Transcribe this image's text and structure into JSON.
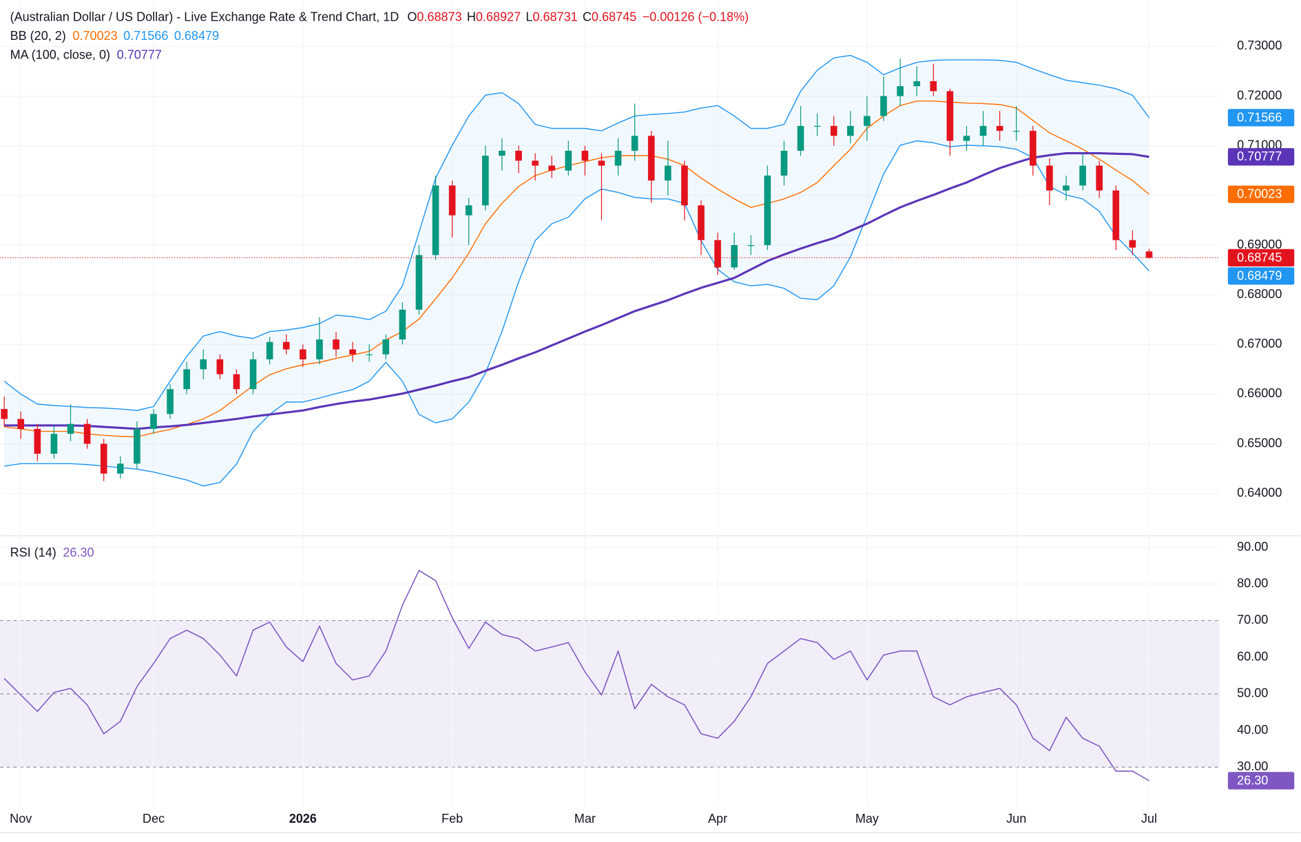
{
  "chart_data": {
    "type": "candlestick",
    "title": "(Australian Dollar / US Dollar) - Live Exchange Rate & Trend Chart, 1D",
    "quote": {
      "o_label": "O",
      "o": "0.68873",
      "h_label": "H",
      "h": "0.68927",
      "l_label": "L",
      "l": "0.68731",
      "c_label": "C",
      "c": "0.68745",
      "change": "−0.00126 (−0.18%)"
    },
    "up_color": "#089981",
    "down_color": "#e3131e",
    "categories": [
      null,
      "Nov",
      null,
      null,
      null,
      null,
      null,
      null,
      null,
      "Dec",
      null,
      null,
      null,
      null,
      null,
      null,
      null,
      null,
      "2026",
      null,
      null,
      null,
      null,
      null,
      null,
      null,
      null,
      "Feb",
      null,
      null,
      null,
      null,
      null,
      null,
      null,
      "Mar",
      null,
      null,
      null,
      null,
      null,
      null,
      null,
      "Apr",
      null,
      null,
      null,
      null,
      null,
      null,
      null,
      null,
      "May",
      null,
      null,
      null,
      null,
      null,
      null,
      null,
      null,
      "Jun",
      null,
      null,
      null,
      null,
      null,
      null,
      null,
      "Jul"
    ],
    "open": [
      0.657,
      0.655,
      0.653,
      0.648,
      0.652,
      0.654,
      0.65,
      0.644,
      0.646,
      0.653,
      0.656,
      0.661,
      0.665,
      0.667,
      0.664,
      0.661,
      0.667,
      0.6705,
      0.669,
      0.667,
      0.671,
      0.669,
      0.668,
      0.668,
      0.671,
      0.677,
      0.688,
      0.702,
      0.696,
      0.698,
      0.708,
      0.709,
      0.707,
      0.706,
      0.705,
      0.709,
      0.707,
      0.706,
      0.709,
      0.712,
      0.703,
      0.706,
      0.698,
      0.691,
      0.6855,
      0.69,
      0.69,
      0.704,
      0.709,
      0.714,
      0.714,
      0.712,
      0.714,
      0.716,
      0.72,
      0.722,
      0.723,
      0.721,
      0.711,
      0.712,
      0.714,
      0.713,
      0.713,
      0.706,
      0.701,
      0.702,
      0.706,
      0.701,
      0.691,
      0.68873
    ],
    "high": [
      0.6595,
      0.6565,
      0.654,
      0.6535,
      0.658,
      0.655,
      0.651,
      0.6475,
      0.6545,
      0.657,
      0.662,
      0.6665,
      0.669,
      0.668,
      0.665,
      0.6685,
      0.6715,
      0.672,
      0.67,
      0.6755,
      0.6725,
      0.6705,
      0.67,
      0.672,
      0.6785,
      0.69,
      0.704,
      0.703,
      0.6995,
      0.71,
      0.7115,
      0.71,
      0.7085,
      0.708,
      0.711,
      0.71,
      0.7085,
      0.7115,
      0.7185,
      0.713,
      0.711,
      0.707,
      0.699,
      0.6925,
      0.6925,
      0.692,
      0.706,
      0.711,
      0.718,
      0.7165,
      0.716,
      0.717,
      0.72,
      0.724,
      0.7275,
      0.726,
      0.7265,
      0.7215,
      0.714,
      0.717,
      0.717,
      0.718,
      0.714,
      0.7075,
      0.704,
      0.7085,
      0.707,
      0.702,
      0.693,
      0.68927
    ],
    "low": [
      0.6535,
      0.651,
      0.6465,
      0.647,
      0.6505,
      0.649,
      0.6425,
      0.643,
      0.645,
      0.652,
      0.655,
      0.66,
      0.663,
      0.663,
      0.66,
      0.66,
      0.666,
      0.668,
      0.6655,
      0.666,
      0.6675,
      0.6665,
      0.6665,
      0.667,
      0.67,
      0.676,
      0.687,
      0.6915,
      0.69,
      0.697,
      0.705,
      0.7045,
      0.703,
      0.7035,
      0.704,
      0.704,
      0.695,
      0.704,
      0.707,
      0.6985,
      0.7,
      0.695,
      0.688,
      0.684,
      0.685,
      0.688,
      0.689,
      0.702,
      0.708,
      0.712,
      0.71,
      0.7105,
      0.711,
      0.715,
      0.718,
      0.72,
      0.72,
      0.708,
      0.709,
      0.71,
      0.711,
      0.711,
      0.704,
      0.698,
      0.699,
      0.701,
      0.6995,
      0.689,
      0.688,
      0.68731
    ],
    "close": [
      0.655,
      0.653,
      0.648,
      0.652,
      0.654,
      0.65,
      0.644,
      0.646,
      0.653,
      0.656,
      0.661,
      0.665,
      0.667,
      0.664,
      0.661,
      0.667,
      0.6705,
      0.669,
      0.667,
      0.671,
      0.669,
      0.668,
      0.668,
      0.671,
      0.677,
      0.688,
      0.702,
      0.696,
      0.698,
      0.708,
      0.709,
      0.707,
      0.706,
      0.705,
      0.709,
      0.707,
      0.706,
      0.709,
      0.712,
      0.703,
      0.706,
      0.698,
      0.691,
      0.6855,
      0.69,
      0.69,
      0.704,
      0.709,
      0.714,
      0.714,
      0.712,
      0.714,
      0.716,
      0.72,
      0.722,
      0.723,
      0.721,
      0.711,
      0.712,
      0.714,
      0.713,
      0.713,
      0.706,
      0.701,
      0.702,
      0.706,
      0.701,
      0.691,
      0.6895,
      0.68745
    ],
    "ylim": [
      0.63165,
      0.73935
    ],
    "yticks": [
      {
        "value": 0.64,
        "label": "0.64000"
      },
      {
        "value": 0.65,
        "label": "0.65000"
      },
      {
        "value": 0.66,
        "label": "0.66000"
      },
      {
        "value": 0.67,
        "label": "0.67000"
      },
      {
        "value": 0.68,
        "label": "0.68000"
      },
      {
        "value": 0.69,
        "label": "0.69000"
      },
      {
        "value": 0.7,
        "label": "0.70000"
      },
      {
        "value": 0.71,
        "label": "0.71000"
      },
      {
        "value": 0.72,
        "label": "0.72000"
      },
      {
        "value": 0.73,
        "label": "0.73000"
      }
    ],
    "grid": true,
    "bollinger": {
      "name": "BB (20, 2)",
      "basis_color": "#ff6d00",
      "band_color": "#2196f3",
      "last": {
        "basis": "0.70023",
        "upper": "0.71566",
        "lower": "0.68479"
      },
      "upper": [
        0.6626,
        0.66,
        0.658,
        0.6577,
        0.6575,
        0.6573,
        0.6572,
        0.657,
        0.6567,
        0.6575,
        0.6626,
        0.6676,
        0.6717,
        0.6726,
        0.6717,
        0.6712,
        0.6726,
        0.6729,
        0.6734,
        0.6742,
        0.6759,
        0.6756,
        0.675,
        0.6767,
        0.6818,
        0.6926,
        0.7035,
        0.7101,
        0.716,
        0.7202,
        0.7207,
        0.7185,
        0.7143,
        0.7135,
        0.7135,
        0.7135,
        0.713,
        0.7146,
        0.716,
        0.7163,
        0.7165,
        0.7168,
        0.7176,
        0.7181,
        0.716,
        0.7135,
        0.7135,
        0.7143,
        0.721,
        0.7252,
        0.7277,
        0.7282,
        0.7268,
        0.7243,
        0.7257,
        0.7268,
        0.7272,
        0.7273,
        0.7273,
        0.7273,
        0.7272,
        0.7268,
        0.7255,
        0.7243,
        0.7232,
        0.7227,
        0.7222,
        0.7215,
        0.7202,
        0.71566
      ],
      "basis": [
        0.6534,
        0.653,
        0.6525,
        0.6525,
        0.6525,
        0.652,
        0.6517,
        0.6515,
        0.6514,
        0.6522,
        0.6529,
        0.6539,
        0.655,
        0.6567,
        0.6592,
        0.6617,
        0.6639,
        0.6651,
        0.6659,
        0.6664,
        0.6672,
        0.6679,
        0.6686,
        0.6709,
        0.6726,
        0.6751,
        0.6792,
        0.6834,
        0.6884,
        0.6943,
        0.6984,
        0.7018,
        0.704,
        0.7051,
        0.706,
        0.7068,
        0.7076,
        0.708,
        0.708,
        0.708,
        0.7073,
        0.706,
        0.7035,
        0.7013,
        0.6993,
        0.6976,
        0.6984,
        0.6993,
        0.7006,
        0.7026,
        0.706,
        0.7093,
        0.7135,
        0.716,
        0.7181,
        0.719,
        0.719,
        0.7188,
        0.7186,
        0.7185,
        0.7183,
        0.7176,
        0.7151,
        0.7126,
        0.711,
        0.7093,
        0.7073,
        0.7051,
        0.703,
        0.70023
      ],
      "lower": [
        0.6455,
        0.646,
        0.646,
        0.646,
        0.646,
        0.6458,
        0.6455,
        0.6452,
        0.6449,
        0.6443,
        0.6435,
        0.6427,
        0.6415,
        0.6422,
        0.6459,
        0.6525,
        0.6559,
        0.6584,
        0.6584,
        0.6592,
        0.6601,
        0.6609,
        0.6626,
        0.6664,
        0.6626,
        0.6559,
        0.6542,
        0.655,
        0.6584,
        0.6642,
        0.6726,
        0.6826,
        0.6909,
        0.6943,
        0.6956,
        0.6993,
        0.7013,
        0.7006,
        0.6996,
        0.6993,
        0.6993,
        0.6984,
        0.6909,
        0.6851,
        0.6826,
        0.6818,
        0.6821,
        0.6813,
        0.6793,
        0.679,
        0.6818,
        0.6876,
        0.6959,
        0.7043,
        0.7101,
        0.711,
        0.7106,
        0.7098,
        0.7101,
        0.71,
        0.7098,
        0.7093,
        0.7076,
        0.7018,
        0.7001,
        0.6993,
        0.6968,
        0.6918,
        0.6884,
        0.68479
      ]
    },
    "ma": {
      "name": "MA (100, close, 0)",
      "color": "#5b35b8",
      "last": "0.70777",
      "values": [
        0.6537,
        0.6537,
        0.6537,
        0.6537,
        0.6537,
        0.6536,
        0.6534,
        0.6532,
        0.653,
        0.6533,
        0.6535,
        0.6538,
        0.6542,
        0.6546,
        0.655,
        0.6555,
        0.6559,
        0.6563,
        0.6567,
        0.6574,
        0.658,
        0.6585,
        0.6589,
        0.6595,
        0.6601,
        0.6609,
        0.6617,
        0.6626,
        0.6634,
        0.6647,
        0.6659,
        0.6672,
        0.6684,
        0.6698,
        0.6712,
        0.6726,
        0.6739,
        0.6753,
        0.6767,
        0.6778,
        0.6789,
        0.6802,
        0.6814,
        0.6824,
        0.6834,
        0.6851,
        0.6868,
        0.6881,
        0.6893,
        0.6904,
        0.6914,
        0.6929,
        0.6943,
        0.696,
        0.6976,
        0.6989,
        0.7001,
        0.7014,
        0.7026,
        0.7041,
        0.7055,
        0.7066,
        0.7076,
        0.7081,
        0.7085,
        0.7085,
        0.7085,
        0.7084,
        0.7083,
        0.70777
      ]
    },
    "rsi": {
      "name": "RSI (14)",
      "color": "#7e57c2",
      "last": "26.30",
      "ylim": [
        19.36,
        92.72
      ],
      "yticks": [
        {
          "value": 30,
          "label": "30.00"
        },
        {
          "value": 40,
          "label": "40.00"
        },
        {
          "value": 50,
          "label": "50.00"
        },
        {
          "value": 60,
          "label": "60.00"
        },
        {
          "value": 70,
          "label": "70.00"
        },
        {
          "value": 80,
          "label": "80.00"
        },
        {
          "value": 90,
          "label": "90.00"
        }
      ],
      "levels": [
        30,
        50,
        70
      ],
      "values": [
        54.2,
        49.7,
        45.2,
        50.4,
        51.5,
        47,
        39.1,
        42.5,
        52,
        58.3,
        65.1,
        67.4,
        65.1,
        60.6,
        54.9,
        67.4,
        69.6,
        62.8,
        58.8,
        68.5,
        58.3,
        53.8,
        54.9,
        61.7,
        74.2,
        83.7,
        80.9,
        70.8,
        62.4,
        69.6,
        66.2,
        65.1,
        61.7,
        62.8,
        64,
        56,
        49.7,
        61.7,
        45.9,
        52.6,
        49.2,
        47,
        39.1,
        37.9,
        42.5,
        49.2,
        58.3,
        61.7,
        65.1,
        64,
        59.4,
        61.7,
        53.8,
        60.6,
        61.7,
        61.7,
        49.2,
        47,
        49.2,
        50.4,
        51.5,
        47,
        37.9,
        34.5,
        43.6,
        37.9,
        35.7,
        28.9,
        28.9,
        26.3
      ]
    }
  }
}
